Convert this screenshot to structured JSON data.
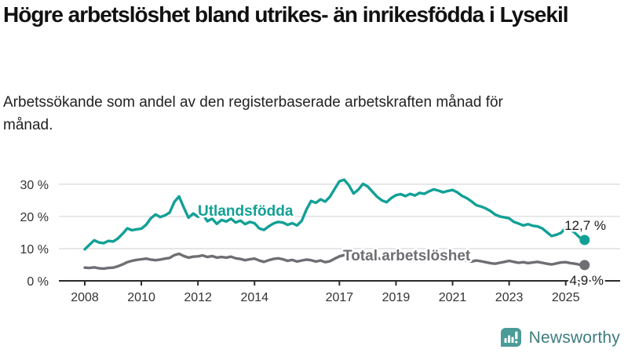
{
  "header": {
    "title": "Högre arbetslöshet bland utrikes- än inrikesfödda i Lysekil",
    "subtitle": "Arbetssökande som andel av den registerbaserade arbetskraften månad för månad."
  },
  "chart_data": {
    "type": "line",
    "title": "Högre arbetslöshet bland utrikes- än inrikesfödda i Lysekil",
    "subtitle": "Arbetssökande som andel av den registerbaserade arbetskraften månad för månad.",
    "x_start_year": 2008,
    "x_step_months": 2,
    "x_end": "2025-09",
    "ylim": [
      0,
      35
    ],
    "yticks": [
      0,
      10,
      20,
      30
    ],
    "ytick_suffix": " %",
    "xticks": [
      2008,
      2010,
      2012,
      2014,
      2017,
      2019,
      2021,
      2023,
      2025
    ],
    "grid": true,
    "legend_position": "inline-labels",
    "series": [
      {
        "name": "Utlandsfödda",
        "color": "#12a096",
        "end_label": "12,7 %",
        "end_value": 12.7,
        "values": [
          9.8,
          11.2,
          12.6,
          11.9,
          11.7,
          12.4,
          12.2,
          13.1,
          14.6,
          16.3,
          15.7,
          16.0,
          16.2,
          17.4,
          19.4,
          20.6,
          19.8,
          20.3,
          21.2,
          24.5,
          26.2,
          22.8,
          19.6,
          20.9,
          19.9,
          20.6,
          18.5,
          19.3,
          17.7,
          18.9,
          18.4,
          19.3,
          18.1,
          18.7,
          17.6,
          18.3,
          17.9,
          16.3,
          15.8,
          16.9,
          17.8,
          18.3,
          18.1,
          17.4,
          17.9,
          17.2,
          18.6,
          22.1,
          24.8,
          24.2,
          25.3,
          24.6,
          26.1,
          28.6,
          30.9,
          31.4,
          29.7,
          27.1,
          28.3,
          30.1,
          29.3,
          27.7,
          26.1,
          25.0,
          24.4,
          25.7,
          26.6,
          26.9,
          26.3,
          27.0,
          26.5,
          27.3,
          27.0,
          27.8,
          28.4,
          28.0,
          27.5,
          27.9,
          28.2,
          27.5,
          26.4,
          25.7,
          24.7,
          23.5,
          23.1,
          22.5,
          21.7,
          20.6,
          20.0,
          19.7,
          19.4,
          18.3,
          17.8,
          17.2,
          17.6,
          17.1,
          16.9,
          16.3,
          15.1,
          13.9,
          14.3,
          14.9,
          16.5,
          15.9,
          14.8,
          13.4,
          12.7
        ]
      },
      {
        "name": "Total arbetslöshet",
        "color": "#6e6e73",
        "end_label": "4,9 %",
        "end_value": 4.9,
        "values": [
          4.1,
          4.0,
          4.2,
          3.9,
          3.8,
          4.0,
          4.1,
          4.5,
          5.1,
          5.8,
          6.2,
          6.5,
          6.7,
          6.9,
          6.6,
          6.4,
          6.6,
          6.9,
          7.1,
          8.0,
          8.4,
          7.7,
          7.2,
          7.5,
          7.6,
          7.9,
          7.4,
          7.7,
          7.2,
          7.4,
          7.2,
          7.5,
          7.0,
          6.8,
          6.4,
          6.7,
          6.9,
          6.3,
          5.9,
          6.4,
          6.8,
          7.0,
          6.7,
          6.2,
          6.5,
          6.0,
          6.3,
          6.6,
          6.4,
          6.0,
          6.3,
          5.8,
          6.1,
          6.9,
          7.6,
          8.0,
          7.4,
          6.8,
          6.5,
          7.0,
          7.2,
          7.5,
          7.1,
          6.7,
          6.4,
          6.7,
          6.9,
          7.1,
          6.8,
          6.5,
          6.7,
          7.0,
          6.8,
          7.2,
          7.5,
          7.2,
          6.9,
          7.1,
          7.3,
          7.0,
          6.6,
          6.3,
          6.0,
          6.3,
          6.1,
          5.8,
          5.5,
          5.3,
          5.6,
          5.9,
          6.2,
          5.9,
          5.6,
          5.8,
          5.5,
          5.7,
          5.9,
          5.6,
          5.3,
          5.1,
          5.4,
          5.7,
          5.8,
          5.5,
          5.3,
          5.0,
          4.9
        ]
      }
    ]
  },
  "footer": {
    "brand": "Newsworthy",
    "logo_icon": "bar-chart-speech-bubble-icon"
  },
  "colors": {
    "accent": "#12a096",
    "gray_series": "#6e6e73",
    "grid": "#dcdcdc",
    "axis": "#2b2b2b",
    "text": "#111111",
    "brand_text": "#3e7c7e",
    "brand_icon": "#4a9c98"
  }
}
